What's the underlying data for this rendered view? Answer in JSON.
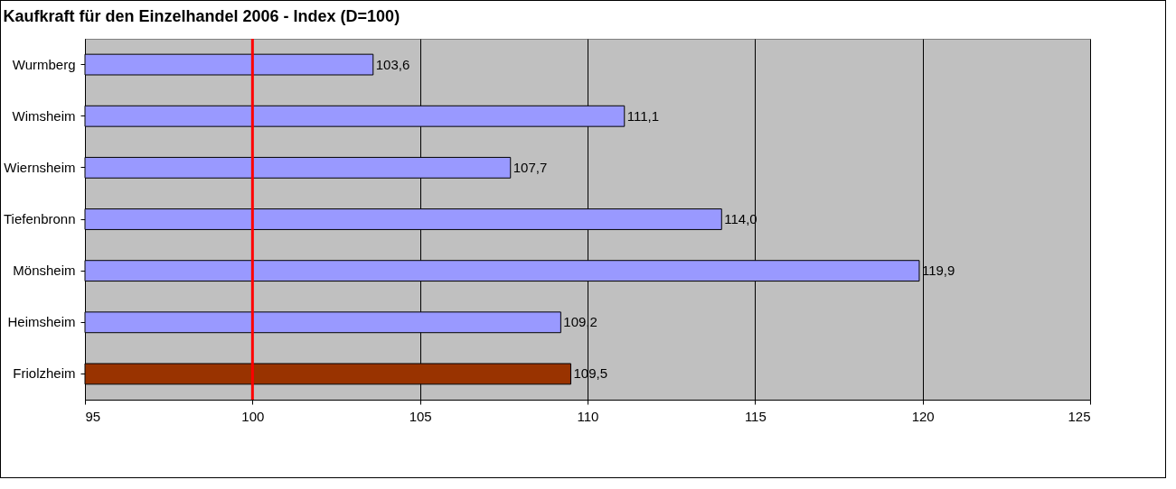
{
  "chart_data": {
    "type": "bar",
    "orientation": "horizontal",
    "title": "Kaufkraft für den Einzelhandel 2006 - Index (D=100)",
    "categories": [
      "Wurmberg",
      "Wimsheim",
      "Wiernsheim",
      "Tiefenbronn",
      "Mönsheim",
      "Heimsheim",
      "Friolzheim"
    ],
    "values": [
      103.6,
      111.1,
      107.7,
      114.0,
      119.9,
      109.2,
      109.5
    ],
    "value_labels": [
      "103,6",
      "111,1",
      "107,7",
      "114,0",
      "119,9",
      "109,2",
      "109,5"
    ],
    "colors": [
      "#9999ff",
      "#9999ff",
      "#9999ff",
      "#9999ff",
      "#9999ff",
      "#9999ff",
      "#993300"
    ],
    "xlim": [
      95,
      125
    ],
    "xticks": [
      95,
      100,
      105,
      110,
      115,
      120,
      125
    ],
    "grid": "x",
    "ref_lines": [
      {
        "axis": "x",
        "value": 100,
        "color": "#ff0000"
      }
    ]
  }
}
